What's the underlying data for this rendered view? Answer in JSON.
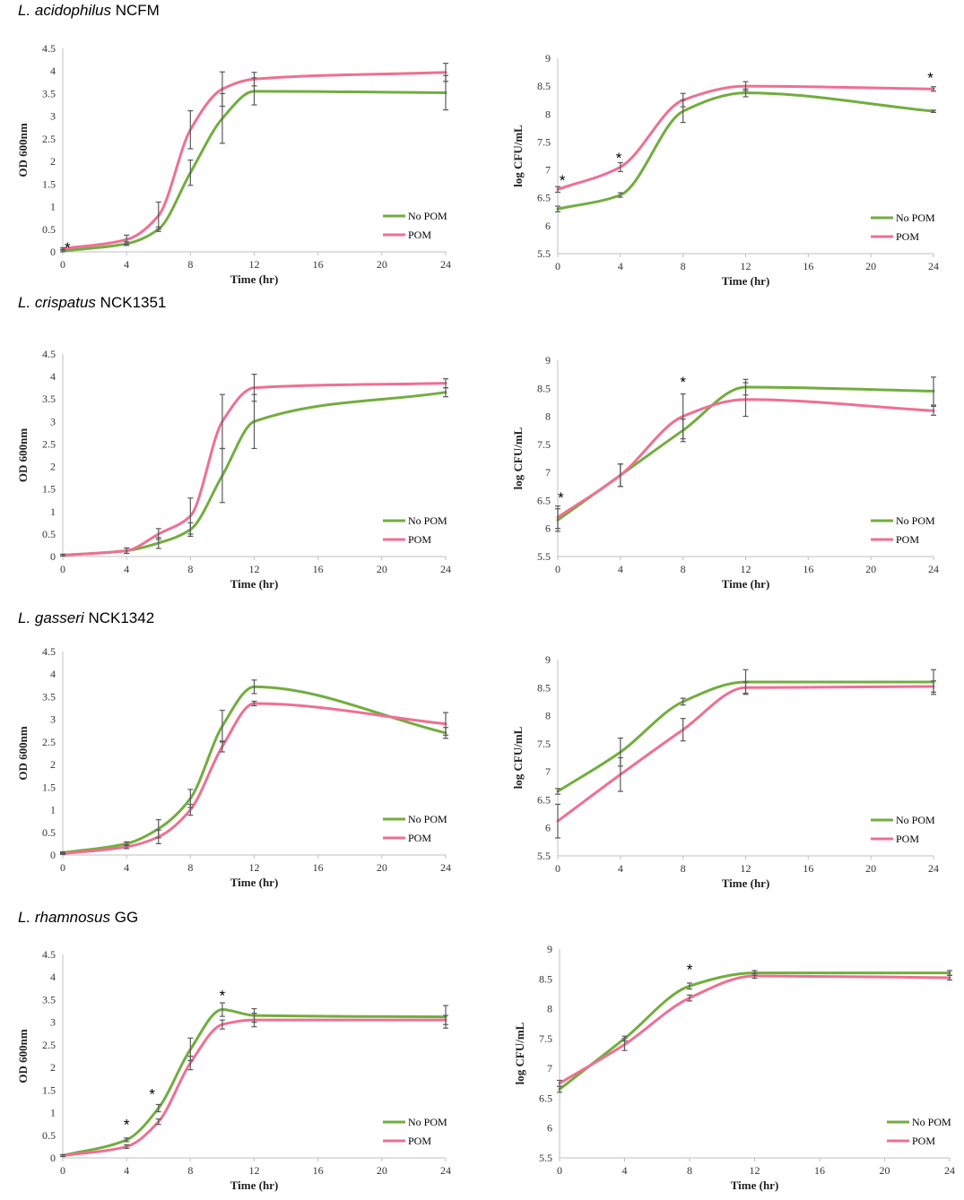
{
  "colors": {
    "no_pom": "#72ad3f",
    "pom": "#ef6f93",
    "axis": "#bfbfbf",
    "errbar": "#595959"
  },
  "sections": [
    {
      "species": "L. acidophilus",
      "strain": "NCFM"
    },
    {
      "species": "L. crispatus",
      "strain": "NCK1351"
    },
    {
      "species": "L. gasseri",
      "strain": "NCK1342"
    },
    {
      "species": "L. rhamnosus",
      "strain": "GG"
    }
  ],
  "chart_data": [
    {
      "id": "acid-od",
      "type": "line",
      "xlabel": "Time (hr)",
      "ylabel": "OD 600nm",
      "xlim": [
        0,
        24
      ],
      "xticks": [
        0,
        4,
        8,
        12,
        16,
        20,
        24
      ],
      "xtick_labels": [
        "0",
        "4",
        "8",
        "12",
        "16",
        "20",
        "24"
      ],
      "ylim": [
        0,
        4.5
      ],
      "yticks": [
        0,
        0.5,
        1,
        1.5,
        2,
        2.5,
        3,
        3.5,
        4,
        4.5
      ],
      "ytick_labels": [
        "0",
        "0.5",
        "1",
        "1.5",
        "2",
        "2.5",
        "3",
        "3.5",
        "4",
        "4.5"
      ],
      "legend": [
        "No POM",
        "POM"
      ],
      "series": [
        {
          "name": "No POM",
          "x": [
            0,
            4,
            6,
            8,
            10,
            12,
            24
          ],
          "values": [
            0.02,
            0.18,
            0.5,
            1.75,
            2.95,
            3.55,
            3.52
          ],
          "err": [
            0.02,
            0.04,
            0.05,
            0.28,
            0.55,
            0.3,
            0.38
          ]
        },
        {
          "name": "POM",
          "x": [
            0,
            4,
            6,
            8,
            10,
            12,
            24
          ],
          "values": [
            0.07,
            0.27,
            0.8,
            2.7,
            3.6,
            3.82,
            3.97
          ],
          "err": [
            0.02,
            0.1,
            0.3,
            0.42,
            0.38,
            0.15,
            0.2
          ]
        }
      ],
      "annotations": [
        {
          "x": 0.3,
          "y": 0.18,
          "text": "*"
        }
      ]
    },
    {
      "id": "acid-cfu",
      "type": "line",
      "xlabel": "Time (hr)",
      "ylabel": "log CFU/mL",
      "xlim": [
        0,
        24
      ],
      "xticks": [
        0,
        4,
        8,
        12,
        16,
        20,
        24
      ],
      "xtick_labels": [
        "0",
        "4",
        "8",
        "12",
        "16",
        "20",
        "24"
      ],
      "ylim": [
        5.5,
        9
      ],
      "yticks": [
        5.5,
        6,
        6.5,
        7,
        7.5,
        8,
        8.5,
        9
      ],
      "ytick_labels": [
        "5.5",
        "6",
        "6.5",
        "7",
        "7.5",
        "8",
        "8.5",
        "9"
      ],
      "legend": [
        "No POM",
        "POM"
      ],
      "series": [
        {
          "name": "No POM",
          "x": [
            0,
            4,
            8,
            12,
            24
          ],
          "values": [
            6.3,
            6.55,
            8.05,
            8.38,
            8.05
          ],
          "err": [
            0.05,
            0.04,
            0.2,
            0.07,
            0.02
          ]
        },
        {
          "name": "POM",
          "x": [
            0,
            4,
            8,
            12,
            24
          ],
          "values": [
            6.65,
            7.05,
            8.25,
            8.5,
            8.45
          ],
          "err": [
            0.05,
            0.08,
            0.12,
            0.08,
            0.04
          ]
        }
      ],
      "annotations": [
        {
          "x": 0.3,
          "y": 6.88,
          "text": "*"
        },
        {
          "x": 3.9,
          "y": 7.28,
          "text": "*"
        },
        {
          "x": 23.8,
          "y": 8.72,
          "text": "*"
        }
      ]
    },
    {
      "id": "crisp-od",
      "type": "line",
      "xlabel": "Time (hr)",
      "ylabel": "OD 600nm",
      "xlim": [
        0,
        24
      ],
      "xticks": [
        0,
        4,
        8,
        12,
        16,
        20,
        24
      ],
      "xtick_labels": [
        "0",
        "4",
        "8",
        "12",
        "16",
        "20",
        "24"
      ],
      "ylim": [
        0,
        4.5
      ],
      "yticks": [
        0,
        0.5,
        1,
        1.5,
        2,
        2.5,
        3,
        3.5,
        4,
        4.5
      ],
      "ytick_labels": [
        "0",
        "0.5",
        "1",
        "1.5",
        "2",
        "2.5",
        "3",
        "3.5",
        "4",
        "4.5"
      ],
      "legend": [
        "No POM",
        "POM"
      ],
      "series": [
        {
          "name": "No POM",
          "x": [
            0,
            4,
            6,
            8,
            10,
            12,
            24
          ],
          "values": [
            0.03,
            0.13,
            0.3,
            0.6,
            1.8,
            3.0,
            3.65
          ],
          "err": [
            0.02,
            0.06,
            0.12,
            0.15,
            0.6,
            0.6,
            0.1
          ]
        },
        {
          "name": "POM",
          "x": [
            0,
            4,
            6,
            8,
            10,
            12,
            24
          ],
          "values": [
            0.03,
            0.13,
            0.5,
            0.9,
            3.0,
            3.75,
            3.85
          ],
          "err": [
            0.02,
            0.06,
            0.12,
            0.4,
            0.6,
            0.3,
            0.1
          ]
        }
      ],
      "annotations": []
    },
    {
      "id": "crisp-cfu",
      "type": "line",
      "xlabel": "Time (hr)",
      "ylabel": "log CFU/mL",
      "xlim": [
        0,
        24
      ],
      "xticks": [
        0,
        4,
        8,
        12,
        16,
        20,
        24
      ],
      "xtick_labels": [
        "0",
        "4",
        "8",
        "12",
        "16",
        "20",
        "24"
      ],
      "ylim": [
        5.5,
        9
      ],
      "yticks": [
        5.5,
        6,
        6.5,
        7,
        7.5,
        8,
        8.5,
        9
      ],
      "ytick_labels": [
        "5.5",
        "6",
        "6.5",
        "7",
        "7.5",
        "8",
        "8.5",
        "9"
      ],
      "legend": [
        "No POM",
        "POM"
      ],
      "series": [
        {
          "name": "No POM",
          "x": [
            0,
            4,
            8,
            12,
            24
          ],
          "values": [
            6.15,
            6.95,
            7.75,
            8.52,
            8.45
          ],
          "err": [
            0.2,
            0.2,
            0.2,
            0.14,
            0.25
          ]
        },
        {
          "name": "POM",
          "x": [
            0,
            4,
            8,
            12,
            24
          ],
          "values": [
            6.2,
            6.95,
            8.0,
            8.3,
            8.1
          ],
          "err": [
            0.2,
            0.2,
            0.4,
            0.3,
            0.08
          ]
        }
      ],
      "annotations": [
        {
          "x": 0.2,
          "y": 6.62,
          "text": "*"
        },
        {
          "x": 8,
          "y": 8.68,
          "text": "*"
        }
      ]
    },
    {
      "id": "gass-od",
      "type": "line",
      "xlabel": "Time (hr)",
      "ylabel": "OD 600nm",
      "xlim": [
        0,
        24
      ],
      "xticks": [
        0,
        4,
        8,
        12,
        16,
        20,
        24
      ],
      "xtick_labels": [
        "0",
        "4",
        "8",
        "12",
        "16",
        "20",
        "24"
      ],
      "ylim": [
        0,
        4.5
      ],
      "yticks": [
        0,
        0.5,
        1,
        1.5,
        2,
        2.5,
        3,
        3.5,
        4,
        4.5
      ],
      "ytick_labels": [
        "0",
        "0.5",
        "1",
        "1.5",
        "2",
        "2.5",
        "3",
        "3.5",
        "4",
        "4.5"
      ],
      "legend": [
        "No POM",
        "POM"
      ],
      "series": [
        {
          "name": "No POM",
          "x": [
            0,
            4,
            6,
            8,
            10,
            12,
            24
          ],
          "values": [
            0.05,
            0.25,
            0.58,
            1.25,
            2.85,
            3.72,
            2.7
          ],
          "err": [
            0.02,
            0.04,
            0.2,
            0.2,
            0.35,
            0.15,
            0.12
          ]
        },
        {
          "name": "POM",
          "x": [
            0,
            4,
            6,
            8,
            10,
            12,
            24
          ],
          "values": [
            0.03,
            0.18,
            0.4,
            1.0,
            2.4,
            3.35,
            2.9
          ],
          "err": [
            0.02,
            0.04,
            0.15,
            0.12,
            0.12,
            0.05,
            0.25
          ]
        }
      ],
      "annotations": []
    },
    {
      "id": "gass-cfu",
      "type": "line",
      "xlabel": "Time (hr)",
      "ylabel": "log CFU/mL",
      "xlim": [
        0,
        24
      ],
      "xticks": [
        0,
        4,
        8,
        12,
        16,
        20,
        24
      ],
      "xtick_labels": [
        "0",
        "4",
        "8",
        "12",
        "16",
        "20",
        "24"
      ],
      "ylim": [
        5.5,
        9
      ],
      "yticks": [
        5.5,
        6,
        6.5,
        7,
        7.5,
        8,
        8.5,
        9
      ],
      "ytick_labels": [
        "5.5",
        "6",
        "6.5",
        "7",
        "7.5",
        "8",
        "8.5",
        "9"
      ],
      "legend": [
        "No POM",
        "POM"
      ],
      "series": [
        {
          "name": "No POM",
          "x": [
            0,
            4,
            8,
            12,
            24
          ],
          "values": [
            6.65,
            7.35,
            8.25,
            8.6,
            8.6
          ],
          "err": [
            0.05,
            0.25,
            0.06,
            0.22,
            0.22
          ]
        },
        {
          "name": "POM",
          "x": [
            0,
            4,
            8,
            12,
            24
          ],
          "values": [
            6.12,
            6.95,
            7.75,
            8.5,
            8.52
          ],
          "err": [
            0.3,
            0.3,
            0.2,
            0.1,
            0.1
          ]
        }
      ],
      "annotations": []
    },
    {
      "id": "rham-od",
      "type": "line",
      "xlabel": "Time (hr)",
      "ylabel": "OD 600nm",
      "xlim": [
        0,
        24
      ],
      "xticks": [
        0,
        4,
        8,
        12,
        16,
        20,
        24
      ],
      "xtick_labels": [
        "0",
        "4",
        "8",
        "12",
        "16",
        "20",
        "24"
      ],
      "ylim": [
        0,
        4.5
      ],
      "yticks": [
        0,
        0.5,
        1,
        1.5,
        2,
        2.5,
        3,
        3.5,
        4,
        4.5
      ],
      "ytick_labels": [
        "0",
        "0.5",
        "1",
        "1.5",
        "2",
        "2.5",
        "3",
        "3.5",
        "4",
        "4.5"
      ],
      "legend": [
        "No POM",
        "POM"
      ],
      "series": [
        {
          "name": "No POM",
          "x": [
            0,
            4,
            6,
            8,
            10,
            12,
            24
          ],
          "values": [
            0.05,
            0.4,
            1.1,
            2.4,
            3.28,
            3.15,
            3.12
          ],
          "err": [
            0.02,
            0.04,
            0.08,
            0.25,
            0.15,
            0.15,
            0.25
          ]
        },
        {
          "name": "POM",
          "x": [
            0,
            4,
            6,
            8,
            10,
            12,
            24
          ],
          "values": [
            0.05,
            0.25,
            0.8,
            2.1,
            2.95,
            3.05,
            3.05
          ],
          "err": [
            0.02,
            0.04,
            0.06,
            0.15,
            0.1,
            0.15,
            0.1
          ]
        }
      ],
      "annotations": [
        {
          "x": 4,
          "y": 0.82,
          "text": "*"
        },
        {
          "x": 5.6,
          "y": 1.5,
          "text": "*"
        },
        {
          "x": 10,
          "y": 3.68,
          "text": "*"
        }
      ]
    },
    {
      "id": "rham-cfu",
      "type": "line",
      "xlabel": "Time (hr)",
      "ylabel": "log CFU/mL",
      "xlim": [
        0,
        24
      ],
      "xticks": [
        0,
        4,
        8,
        12,
        16,
        20,
        24
      ],
      "xtick_labels": [
        "0",
        "4",
        "8",
        "12",
        "16",
        "20",
        "24"
      ],
      "ylim": [
        5.5,
        9
      ],
      "yticks": [
        5.5,
        6,
        6.5,
        7,
        7.5,
        8,
        8.5,
        9
      ],
      "ytick_labels": [
        "5.5",
        "6",
        "6.5",
        "7",
        "7.5",
        "8",
        "8.5",
        "9"
      ],
      "legend": [
        "No POM",
        "POM"
      ],
      "series": [
        {
          "name": "No POM",
          "x": [
            0,
            4,
            8,
            12,
            24
          ],
          "values": [
            6.65,
            7.5,
            8.38,
            8.6,
            8.6
          ],
          "err": [
            0.05,
            0.04,
            0.05,
            0.04,
            0.04
          ]
        },
        {
          "name": "POM",
          "x": [
            0,
            4,
            8,
            12,
            24
          ],
          "values": [
            6.75,
            7.4,
            8.18,
            8.55,
            8.52
          ],
          "err": [
            0.05,
            0.1,
            0.05,
            0.04,
            0.04
          ]
        }
      ],
      "annotations": [
        {
          "x": 8,
          "y": 8.72,
          "text": "*"
        }
      ]
    }
  ]
}
